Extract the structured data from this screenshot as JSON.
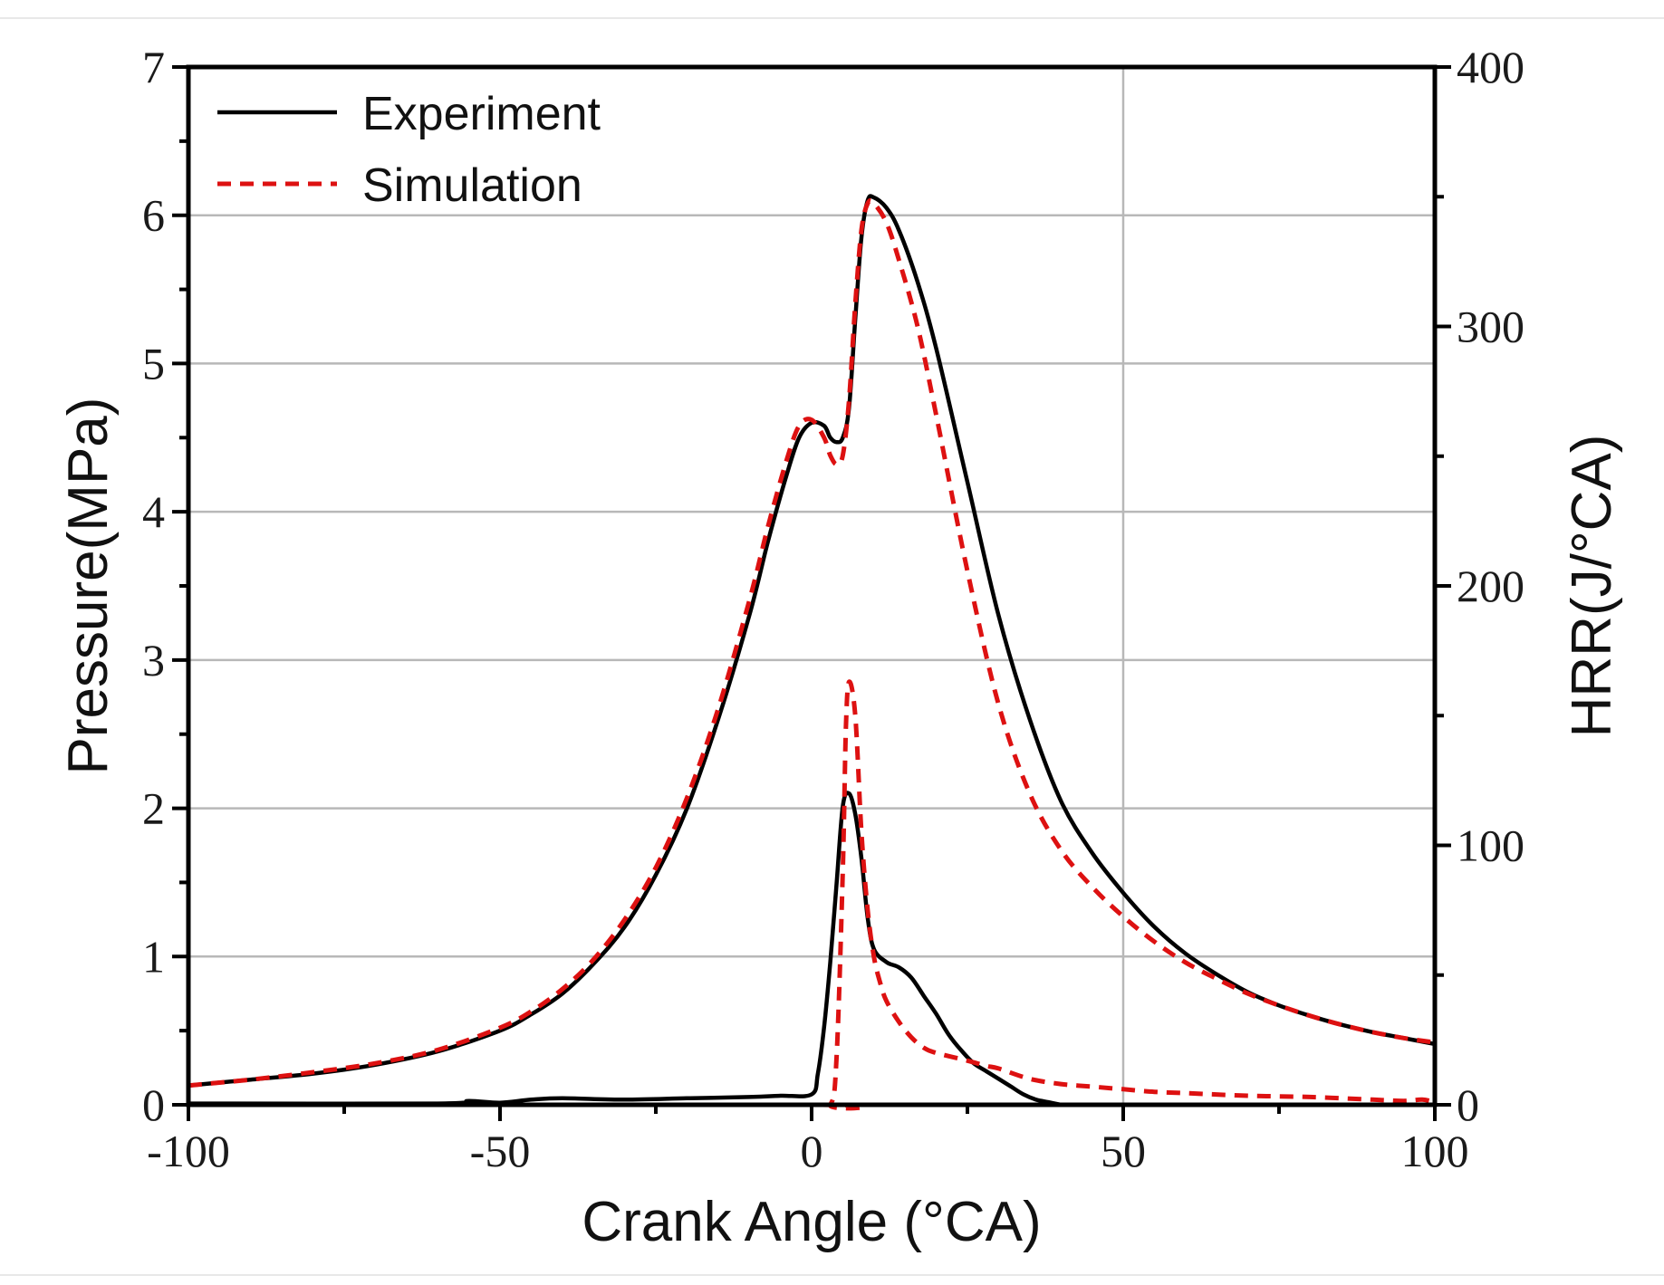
{
  "chart_data": {
    "type": "line",
    "x": {
      "label": "Crank Angle (°CA)",
      "range": [
        -100,
        100
      ],
      "ticks": [
        "-100",
        "-50",
        "0",
        "50",
        "100"
      ]
    },
    "y_left": {
      "label": "Pressure(MPa)",
      "range": [
        0,
        7
      ],
      "ticks": [
        "0",
        "1",
        "2",
        "3",
        "4",
        "5",
        "6",
        "7"
      ]
    },
    "y_right": {
      "label": "HRR(J/°CA)",
      "range": [
        0,
        400
      ],
      "ticks": [
        "0",
        "100",
        "200",
        "300",
        "400"
      ]
    },
    "legend": {
      "position": "top-left",
      "experiment": "Experiment",
      "simulation": "Simulation"
    },
    "colors": {
      "experiment": "#000000",
      "simulation": "#dd1111"
    },
    "grid": {
      "horizontal": true,
      "vertical_at_x": 50
    },
    "series": [
      {
        "name": "Experiment",
        "quantity": "pressure",
        "axis": "left",
        "points": [
          [
            -100,
            0.13
          ],
          [
            -90,
            0.17
          ],
          [
            -80,
            0.21
          ],
          [
            -70,
            0.27
          ],
          [
            -60,
            0.36
          ],
          [
            -50,
            0.5
          ],
          [
            -45,
            0.61
          ],
          [
            -40,
            0.75
          ],
          [
            -35,
            0.95
          ],
          [
            -30,
            1.2
          ],
          [
            -25,
            1.55
          ],
          [
            -20,
            2.0
          ],
          [
            -15,
            2.6
          ],
          [
            -10,
            3.3
          ],
          [
            -7,
            3.8
          ],
          [
            -4,
            4.25
          ],
          [
            -2,
            4.5
          ],
          [
            0,
            4.6
          ],
          [
            2,
            4.58
          ],
          [
            3,
            4.5
          ],
          [
            4,
            4.47
          ],
          [
            5,
            4.5
          ],
          [
            6,
            4.7
          ],
          [
            7,
            5.3
          ],
          [
            8,
            5.85
          ],
          [
            9,
            6.1
          ],
          [
            10,
            6.12
          ],
          [
            12,
            6.05
          ],
          [
            14,
            5.9
          ],
          [
            17,
            5.55
          ],
          [
            20,
            5.1
          ],
          [
            25,
            4.2
          ],
          [
            30,
            3.3
          ],
          [
            35,
            2.6
          ],
          [
            40,
            2.05
          ],
          [
            45,
            1.7
          ],
          [
            50,
            1.43
          ],
          [
            55,
            1.2
          ],
          [
            60,
            1.02
          ],
          [
            65,
            0.88
          ],
          [
            70,
            0.76
          ],
          [
            75,
            0.67
          ],
          [
            80,
            0.6
          ],
          [
            85,
            0.54
          ],
          [
            90,
            0.49
          ],
          [
            95,
            0.45
          ],
          [
            100,
            0.41
          ]
        ]
      },
      {
        "name": "Simulation",
        "quantity": "pressure",
        "axis": "left",
        "points": [
          [
            -100,
            0.13
          ],
          [
            -90,
            0.17
          ],
          [
            -80,
            0.22
          ],
          [
            -70,
            0.28
          ],
          [
            -60,
            0.37
          ],
          [
            -50,
            0.52
          ],
          [
            -45,
            0.63
          ],
          [
            -40,
            0.78
          ],
          [
            -35,
            0.98
          ],
          [
            -30,
            1.25
          ],
          [
            -25,
            1.6
          ],
          [
            -20,
            2.07
          ],
          [
            -15,
            2.67
          ],
          [
            -10,
            3.4
          ],
          [
            -7,
            3.9
          ],
          [
            -4,
            4.35
          ],
          [
            -2,
            4.58
          ],
          [
            0,
            4.62
          ],
          [
            2,
            4.5
          ],
          [
            3,
            4.38
          ],
          [
            4,
            4.32
          ],
          [
            5,
            4.38
          ],
          [
            6,
            4.75
          ],
          [
            7,
            5.4
          ],
          [
            8,
            5.9
          ],
          [
            9,
            6.08
          ],
          [
            10,
            6.08
          ],
          [
            12,
            5.95
          ],
          [
            14,
            5.7
          ],
          [
            17,
            5.25
          ],
          [
            20,
            4.65
          ],
          [
            25,
            3.6
          ],
          [
            30,
            2.7
          ],
          [
            35,
            2.1
          ],
          [
            40,
            1.72
          ],
          [
            45,
            1.47
          ],
          [
            50,
            1.27
          ],
          [
            55,
            1.1
          ],
          [
            60,
            0.96
          ],
          [
            65,
            0.85
          ],
          [
            70,
            0.75
          ],
          [
            75,
            0.67
          ],
          [
            80,
            0.6
          ],
          [
            85,
            0.54
          ],
          [
            90,
            0.49
          ],
          [
            95,
            0.45
          ],
          [
            100,
            0.42
          ]
        ]
      },
      {
        "name": "Experiment",
        "quantity": "hrr",
        "axis": "right",
        "points": [
          [
            -100,
            0.5
          ],
          [
            -60,
            0.5
          ],
          [
            -55,
            1.5
          ],
          [
            -50,
            0.8
          ],
          [
            -45,
            2
          ],
          [
            -40,
            2.5
          ],
          [
            -30,
            2
          ],
          [
            -20,
            2.5
          ],
          [
            -10,
            3
          ],
          [
            -5,
            3.5
          ],
          [
            0,
            4
          ],
          [
            1,
            12
          ],
          [
            2,
            30
          ],
          [
            3,
            55
          ],
          [
            4,
            85
          ],
          [
            5,
            115
          ],
          [
            6,
            120
          ],
          [
            7,
            112
          ],
          [
            8,
            95
          ],
          [
            9,
            72
          ],
          [
            10,
            60
          ],
          [
            12,
            55
          ],
          [
            14,
            53
          ],
          [
            16,
            49
          ],
          [
            18,
            42
          ],
          [
            20,
            35
          ],
          [
            22,
            27
          ],
          [
            24,
            21
          ],
          [
            26,
            16
          ],
          [
            28,
            13
          ],
          [
            30,
            10
          ],
          [
            32,
            7
          ],
          [
            34,
            4
          ],
          [
            36,
            2
          ],
          [
            38,
            1
          ],
          [
            40,
            0
          ]
        ]
      },
      {
        "name": "Simulation",
        "quantity": "hrr",
        "axis": "right",
        "points": [
          [
            -100,
            0
          ],
          [
            0,
            0
          ],
          [
            3,
            0
          ],
          [
            4,
            18
          ],
          [
            5,
            90
          ],
          [
            5.5,
            145
          ],
          [
            6,
            163
          ],
          [
            7,
            150
          ],
          [
            8,
            105
          ],
          [
            9,
            75
          ],
          [
            10,
            57
          ],
          [
            11,
            47
          ],
          [
            12,
            40
          ],
          [
            14,
            32
          ],
          [
            16,
            26
          ],
          [
            18,
            22
          ],
          [
            20,
            20
          ],
          [
            25,
            17
          ],
          [
            28,
            15
          ],
          [
            30,
            14
          ],
          [
            35,
            10
          ],
          [
            40,
            8
          ],
          [
            45,
            7
          ],
          [
            50,
            6
          ],
          [
            55,
            5
          ],
          [
            60,
            4.5
          ],
          [
            70,
            3.5
          ],
          [
            80,
            3
          ],
          [
            90,
            2
          ],
          [
            95,
            1.5
          ],
          [
            98,
            2
          ],
          [
            100,
            1
          ]
        ]
      }
    ]
  }
}
